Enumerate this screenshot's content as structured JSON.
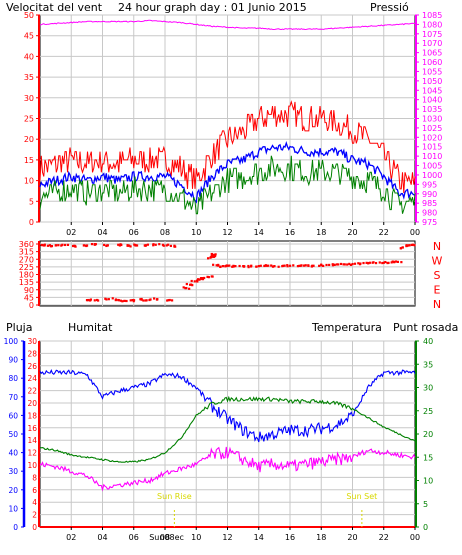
{
  "colors": {
    "red": "#ff0000",
    "blue": "#0000ff",
    "green": "#008000",
    "magenta": "#ff00ff",
    "black": "#000000",
    "grid": "#c8c8c8",
    "sun": "#d8d800"
  },
  "chart_data": [
    {
      "type": "line",
      "title": "24 hour graph day : 01 Junio 2015",
      "left_axis_label": "Velocitat del vent",
      "right_axis_label": "Pressió",
      "ylim": [
        0,
        50
      ],
      "yticks": [
        "0",
        "5",
        "10",
        "15",
        "20",
        "25",
        "30",
        "35",
        "40",
        "45",
        "50"
      ],
      "y2lim": [
        975,
        1085
      ],
      "y2ticks": [
        "975",
        "980",
        "985",
        "990",
        "995",
        "1000",
        "1005",
        "1010",
        "1015",
        "1020",
        "1025",
        "1030",
        "1035",
        "1040",
        "1045",
        "1050",
        "1055",
        "1060",
        "1065",
        "1070",
        "1075",
        "1080",
        "1085"
      ],
      "x": [
        0,
        1,
        2,
        3,
        4,
        5,
        6,
        7,
        8,
        9,
        10,
        11,
        12,
        13,
        14,
        15,
        16,
        17,
        18,
        19,
        20,
        21,
        22,
        23,
        24
      ],
      "series": [
        {
          "color": "red",
          "values": [
            13,
            14,
            15,
            14,
            15,
            14,
            15,
            15,
            15,
            13,
            10,
            16,
            20,
            22,
            25,
            26,
            26,
            25,
            25,
            24,
            22,
            20,
            16,
            10,
            9
          ]
        },
        {
          "color": "blue",
          "values": [
            9,
            10,
            11,
            10,
            11,
            10,
            11,
            11,
            11,
            9,
            6,
            11,
            14,
            15,
            17,
            18,
            18,
            17,
            17,
            17,
            15,
            14,
            11,
            7,
            7
          ]
        },
        {
          "color": "green",
          "values": [
            6,
            7,
            8,
            7,
            8,
            7,
            8,
            8,
            8,
            6,
            3,
            7,
            10,
            11,
            12,
            13,
            13,
            12,
            12,
            12,
            11,
            10,
            8,
            4,
            5
          ]
        },
        {
          "color": "magenta",
          "axis": "right",
          "values": [
            1080,
            1080.5,
            1081,
            1081.5,
            1081.5,
            1081.5,
            1081.5,
            1082,
            1081.5,
            1081,
            1080,
            1079,
            1078.5,
            1078,
            1078,
            1077.5,
            1077.5,
            1077.5,
            1077.5,
            1078,
            1078.5,
            1079,
            1079.5,
            1080,
            1080.5
          ]
        }
      ]
    },
    {
      "type": "scatter",
      "ylim": [
        0,
        360
      ],
      "yticks": [
        "0",
        "45",
        "90",
        "135",
        "180",
        "225",
        "270",
        "315",
        "360"
      ],
      "compass_labels": [
        "N",
        "W",
        "S",
        "E",
        "N"
      ],
      "series": [
        {
          "color": "red",
          "points": [
            [
              0.1,
              355
            ],
            [
              0.5,
              350
            ],
            [
              1.0,
              352
            ],
            [
              1.6,
              355
            ],
            [
              2.2,
              350
            ],
            [
              2.8,
              352
            ],
            [
              3.5,
              356
            ],
            [
              4.3,
              352
            ],
            [
              5.0,
              356
            ],
            [
              5.6,
              350
            ],
            [
              6.1,
              354
            ],
            [
              6.7,
              352
            ],
            [
              7.4,
              356
            ],
            [
              8.1,
              352
            ],
            [
              8.6,
              350
            ],
            [
              3.1,
              30
            ],
            [
              3.5,
              28
            ],
            [
              4.4,
              35
            ],
            [
              5.0,
              30
            ],
            [
              5.4,
              25
            ],
            [
              5.8,
              28
            ],
            [
              6.5,
              32
            ],
            [
              7.0,
              30
            ],
            [
              7.5,
              35
            ],
            [
              8.3,
              30
            ],
            [
              9.3,
              100
            ],
            [
              9.6,
              120
            ],
            [
              9.9,
              140
            ],
            [
              10.2,
              150
            ],
            [
              10.5,
              160
            ],
            [
              10.8,
              165
            ],
            [
              10.9,
              280
            ],
            [
              11.0,
              300
            ],
            [
              11.2,
              290
            ],
            [
              11.3,
              235
            ],
            [
              11.7,
              230
            ],
            [
              12.0,
              232
            ],
            [
              12.5,
              230
            ],
            [
              13.0,
              230
            ],
            [
              13.5,
              228
            ],
            [
              14.0,
              230
            ],
            [
              14.5,
              232
            ],
            [
              15.0,
              230
            ],
            [
              15.5,
              230
            ],
            [
              16.0,
              232
            ],
            [
              16.5,
              230
            ],
            [
              17.0,
              235
            ],
            [
              17.5,
              232
            ],
            [
              18.0,
              235
            ],
            [
              18.5,
              237
            ],
            [
              19.0,
              240
            ],
            [
              19.5,
              240
            ],
            [
              20.0,
              242
            ],
            [
              20.5,
              245
            ],
            [
              21.0,
              247
            ],
            [
              21.5,
              248
            ],
            [
              22.0,
              250
            ],
            [
              22.5,
              252
            ],
            [
              22.9,
              255
            ],
            [
              23.2,
              340
            ],
            [
              23.5,
              350
            ],
            [
              23.8,
              355
            ]
          ]
        }
      ]
    },
    {
      "type": "line",
      "left_labels": [
        "Pluja",
        "Humitat"
      ],
      "right_labels": [
        "Temperatura",
        "Punt rosada"
      ],
      "rain_ylim": [
        0,
        100
      ],
      "rain_yticks": [
        "0",
        "10",
        "20",
        "30",
        "40",
        "50",
        "60",
        "70",
        "80",
        "90",
        "100"
      ],
      "hum_ylim": [
        0,
        30
      ],
      "hum_yticks": [
        "0",
        "2",
        "4",
        "6",
        "8",
        "10",
        "12",
        "14",
        "16",
        "18",
        "20",
        "22",
        "24",
        "26",
        "28",
        "30"
      ],
      "temp_ylim": [
        0,
        40
      ],
      "temp_yticks": [
        "0",
        "5",
        "10",
        "15",
        "20",
        "25",
        "30",
        "35",
        "40"
      ],
      "x": [
        0,
        1,
        2,
        3,
        4,
        5,
        6,
        7,
        8,
        9,
        10,
        11,
        12,
        13,
        14,
        15,
        16,
        17,
        18,
        19,
        20,
        21,
        22,
        23,
        24
      ],
      "series": [
        {
          "color": "blue",
          "axis": "rain",
          "values": [
            83,
            83,
            83,
            82,
            70,
            73,
            75,
            77,
            82,
            81,
            75,
            65,
            58,
            52,
            48,
            50,
            52,
            52,
            53,
            55,
            60,
            75,
            83,
            83,
            83
          ]
        },
        {
          "color": "green",
          "axis": "temp",
          "values": [
            17,
            16.5,
            15.5,
            15,
            14.5,
            14,
            14,
            14.5,
            16,
            19,
            24,
            26.5,
            27.5,
            27.5,
            27.5,
            27.5,
            27,
            27,
            27,
            26.5,
            25.5,
            23.5,
            21.5,
            20,
            18.5
          ]
        },
        {
          "color": "magenta",
          "axis": "temp",
          "values": [
            13.5,
            13,
            12,
            11,
            8.5,
            9,
            9.5,
            10,
            11.5,
            12.5,
            13.5,
            15.5,
            16,
            14.5,
            13,
            13.5,
            13,
            13.5,
            14,
            14.5,
            15,
            16.5,
            16,
            15.5,
            15
          ]
        },
        {
          "color": "red",
          "axis": "rain",
          "values": [
            0,
            0,
            0,
            0,
            0,
            0,
            0,
            0,
            0,
            0,
            0,
            0,
            0,
            0,
            0,
            0,
            0,
            0,
            0,
            0,
            0,
            0,
            0,
            0,
            0
          ]
        }
      ],
      "sun_rise": {
        "label": "Sun Rise",
        "x": 8.6
      },
      "sun_set": {
        "label": "Sun Set",
        "x": 20.6
      }
    }
  ],
  "x_axis_ticks": [
    "02",
    "04",
    "06",
    "08",
    "10",
    "12",
    "14",
    "16",
    "18",
    "20",
    "22",
    "00"
  ],
  "x_axis_extra": "Sun08ec"
}
